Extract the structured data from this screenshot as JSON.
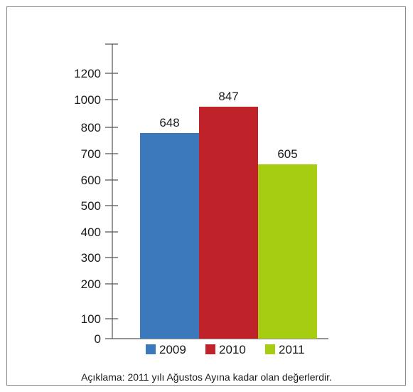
{
  "chart_data": {
    "type": "bar",
    "categories": [
      "2009",
      "2010",
      "2011"
    ],
    "values": [
      648,
      847,
      605
    ],
    "colors": [
      "#3b78bc",
      "#bf2228",
      "#a6cd12"
    ],
    "y_ticks": [
      {
        "label": "1200",
        "pos": 1200
      },
      {
        "label": "1000",
        "pos": 1000
      },
      {
        "label": "800",
        "pos": 800
      },
      {
        "label": "700",
        "pos": 700
      },
      {
        "label": "600",
        "pos": 600
      },
      {
        "label": "500",
        "pos": 500
      },
      {
        "label": "400",
        "pos": 400
      },
      {
        "label": "300",
        "pos": 300
      },
      {
        "label": "200",
        "pos": 200
      },
      {
        "label": "100",
        "pos": 100
      },
      {
        "label": "0",
        "pos": 0
      }
    ],
    "legend": [
      "2009",
      "2010",
      "2011"
    ],
    "legend_position": "bottom",
    "grid": false,
    "title": "",
    "xlabel": "",
    "ylabel": ""
  },
  "note": "Açıklama: 2011 yılı Ağustos Ayına kadar olan değerlerdir."
}
